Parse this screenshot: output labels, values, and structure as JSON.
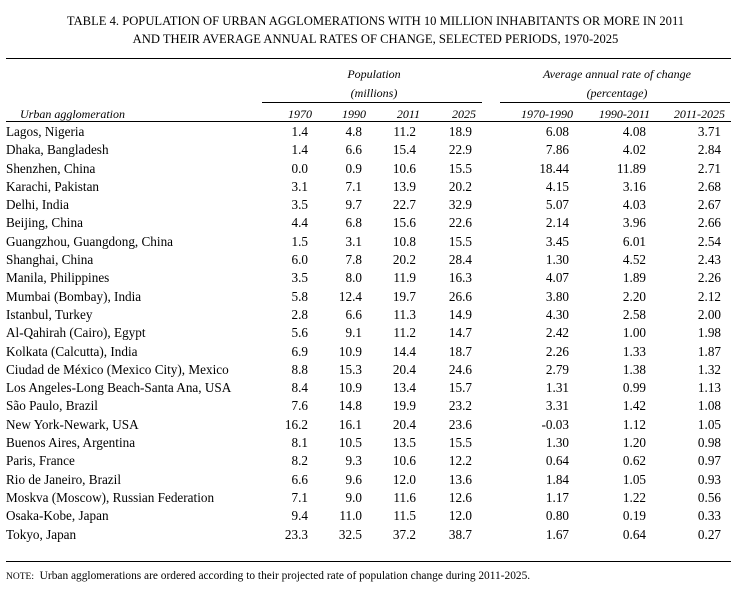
{
  "title": {
    "line1": "TABLE 4. POPULATION OF URBAN AGGLOMERATIONS WITH 10 MILLION INHABITANTS OR MORE IN 2011",
    "line2": "AND THEIR AVERAGE ANNUAL RATES OF CHANGE, SELECTED PERIODS, 1970-2025"
  },
  "headers": {
    "population_l1": "Population",
    "population_l2": "(millions)",
    "rate_l1": "Average annual rate of change",
    "rate_l2": "(percentage)",
    "city": "Urban agglomeration",
    "years": [
      "1970",
      "1990",
      "2011",
      "2025"
    ],
    "periods": [
      "1970-1990",
      "1990-2011",
      "2011-2025"
    ]
  },
  "rows": [
    {
      "city": "Lagos, Nigeria",
      "p1970": "1.4",
      "p1990": "4.8",
      "p2011": "11.2",
      "p2025": "18.9",
      "r1": "6.08",
      "r2": "4.08",
      "r3": "3.71"
    },
    {
      "city": "Dhaka, Bangladesh",
      "p1970": "1.4",
      "p1990": "6.6",
      "p2011": "15.4",
      "p2025": "22.9",
      "r1": "7.86",
      "r2": "4.02",
      "r3": "2.84"
    },
    {
      "city": "Shenzhen, China",
      "p1970": "0.0",
      "p1990": "0.9",
      "p2011": "10.6",
      "p2025": "15.5",
      "r1": "18.44",
      "r2": "11.89",
      "r3": "2.71"
    },
    {
      "city": "Karachi, Pakistan",
      "p1970": "3.1",
      "p1990": "7.1",
      "p2011": "13.9",
      "p2025": "20.2",
      "r1": "4.15",
      "r2": "3.16",
      "r3": "2.68"
    },
    {
      "city": "Delhi, India",
      "p1970": "3.5",
      "p1990": "9.7",
      "p2011": "22.7",
      "p2025": "32.9",
      "r1": "5.07",
      "r2": "4.03",
      "r3": "2.67"
    },
    {
      "city": "Beijing, China",
      "p1970": "4.4",
      "p1990": "6.8",
      "p2011": "15.6",
      "p2025": "22.6",
      "r1": "2.14",
      "r2": "3.96",
      "r3": "2.66"
    },
    {
      "city": "Guangzhou, Guangdong, China",
      "p1970": "1.5",
      "p1990": "3.1",
      "p2011": "10.8",
      "p2025": "15.5",
      "r1": "3.45",
      "r2": "6.01",
      "r3": "2.54"
    },
    {
      "city": "Shanghai, China",
      "p1970": "6.0",
      "p1990": "7.8",
      "p2011": "20.2",
      "p2025": "28.4",
      "r1": "1.30",
      "r2": "4.52",
      "r3": "2.43"
    },
    {
      "city": "Manila, Philippines",
      "p1970": "3.5",
      "p1990": "8.0",
      "p2011": "11.9",
      "p2025": "16.3",
      "r1": "4.07",
      "r2": "1.89",
      "r3": "2.26"
    },
    {
      "city": "Mumbai (Bombay), India",
      "p1970": "5.8",
      "p1990": "12.4",
      "p2011": "19.7",
      "p2025": "26.6",
      "r1": "3.80",
      "r2": "2.20",
      "r3": "2.12"
    },
    {
      "city": "Istanbul, Turkey",
      "p1970": "2.8",
      "p1990": "6.6",
      "p2011": "11.3",
      "p2025": "14.9",
      "r1": "4.30",
      "r2": "2.58",
      "r3": "2.00"
    },
    {
      "city": "Al-Qahirah (Cairo), Egypt",
      "p1970": "5.6",
      "p1990": "9.1",
      "p2011": "11.2",
      "p2025": "14.7",
      "r1": "2.42",
      "r2": "1.00",
      "r3": "1.98"
    },
    {
      "city": "Kolkata (Calcutta), India",
      "p1970": "6.9",
      "p1990": "10.9",
      "p2011": "14.4",
      "p2025": "18.7",
      "r1": "2.26",
      "r2": "1.33",
      "r3": "1.87"
    },
    {
      "city": "Ciudad de México (Mexico City), Mexico",
      "p1970": "8.8",
      "p1990": "15.3",
      "p2011": "20.4",
      "p2025": "24.6",
      "r1": "2.79",
      "r2": "1.38",
      "r3": "1.32"
    },
    {
      "city": "Los Angeles-Long Beach-Santa Ana, USA",
      "p1970": "8.4",
      "p1990": "10.9",
      "p2011": "13.4",
      "p2025": "15.7",
      "r1": "1.31",
      "r2": "0.99",
      "r3": "1.13"
    },
    {
      "city": "São Paulo, Brazil",
      "p1970": "7.6",
      "p1990": "14.8",
      "p2011": "19.9",
      "p2025": "23.2",
      "r1": "3.31",
      "r2": "1.42",
      "r3": "1.08"
    },
    {
      "city": "New York-Newark, USA",
      "p1970": "16.2",
      "p1990": "16.1",
      "p2011": "20.4",
      "p2025": "23.6",
      "r1": "-0.03",
      "r2": "1.12",
      "r3": "1.05"
    },
    {
      "city": "Buenos Aires, Argentina",
      "p1970": "8.1",
      "p1990": "10.5",
      "p2011": "13.5",
      "p2025": "15.5",
      "r1": "1.30",
      "r2": "1.20",
      "r3": "0.98"
    },
    {
      "city": "Paris, France",
      "p1970": "8.2",
      "p1990": "9.3",
      "p2011": "10.6",
      "p2025": "12.2",
      "r1": "0.64",
      "r2": "0.62",
      "r3": "0.97"
    },
    {
      "city": "Rio de Janeiro, Brazil",
      "p1970": "6.6",
      "p1990": "9.6",
      "p2011": "12.0",
      "p2025": "13.6",
      "r1": "1.84",
      "r2": "1.05",
      "r3": "0.93"
    },
    {
      "city": "Moskva (Moscow), Russian Federation",
      "p1970": "7.1",
      "p1990": "9.0",
      "p2011": "11.6",
      "p2025": "12.6",
      "r1": "1.17",
      "r2": "1.22",
      "r3": "0.56"
    },
    {
      "city": "Osaka-Kobe, Japan",
      "p1970": "9.4",
      "p1990": "11.0",
      "p2011": "11.5",
      "p2025": "12.0",
      "r1": "0.80",
      "r2": "0.19",
      "r3": "0.33"
    },
    {
      "city": "Tokyo, Japan",
      "p1970": "23.3",
      "p1990": "32.5",
      "p2011": "37.2",
      "p2025": "38.7",
      "r1": "1.67",
      "r2": "0.64",
      "r3": "0.27"
    }
  ],
  "note": {
    "label": "NOTE:",
    "text": "Urban agglomerations are ordered according to their projected rate of population change during 2011-2025."
  }
}
